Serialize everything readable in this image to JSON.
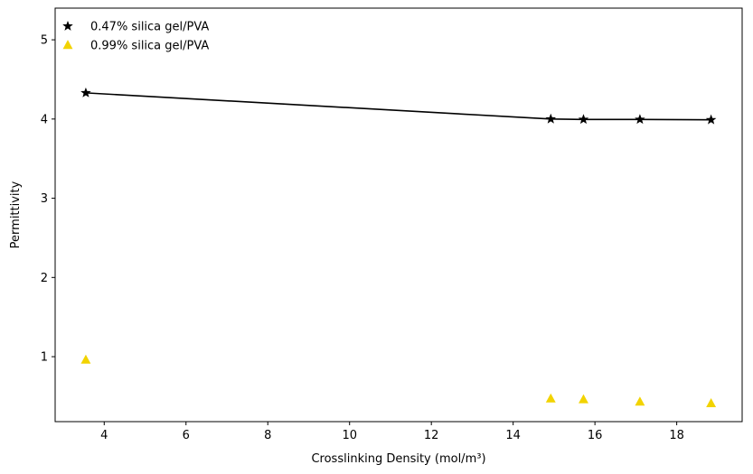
{
  "chart_data": {
    "type": "scatter",
    "xlabel": "Crosslinking Density (mol/m³)",
    "ylabel": "Permittivity",
    "xlim": [
      2.8,
      19.6
    ],
    "ylim": [
      0.18,
      5.4
    ],
    "xticks": [
      4,
      6,
      8,
      10,
      12,
      14,
      16,
      18
    ],
    "yticks": [
      1,
      2,
      3,
      4,
      5
    ],
    "grid": false,
    "legend_position": "top-left",
    "series": [
      {
        "name": "0.47% silica gel/PVA",
        "marker": "star",
        "color": "#000000",
        "line": true,
        "x": [
          3.55,
          14.92,
          15.72,
          17.1,
          18.84
        ],
        "y": [
          4.33,
          4.0,
          3.995,
          3.995,
          3.99
        ]
      },
      {
        "name": "0.99% silica gel/PVA",
        "marker": "triangle",
        "color": "#f2d300",
        "line": false,
        "x": [
          3.55,
          14.92,
          15.72,
          17.1,
          18.84
        ],
        "y": [
          0.96,
          0.47,
          0.46,
          0.43,
          0.41
        ]
      }
    ]
  }
}
